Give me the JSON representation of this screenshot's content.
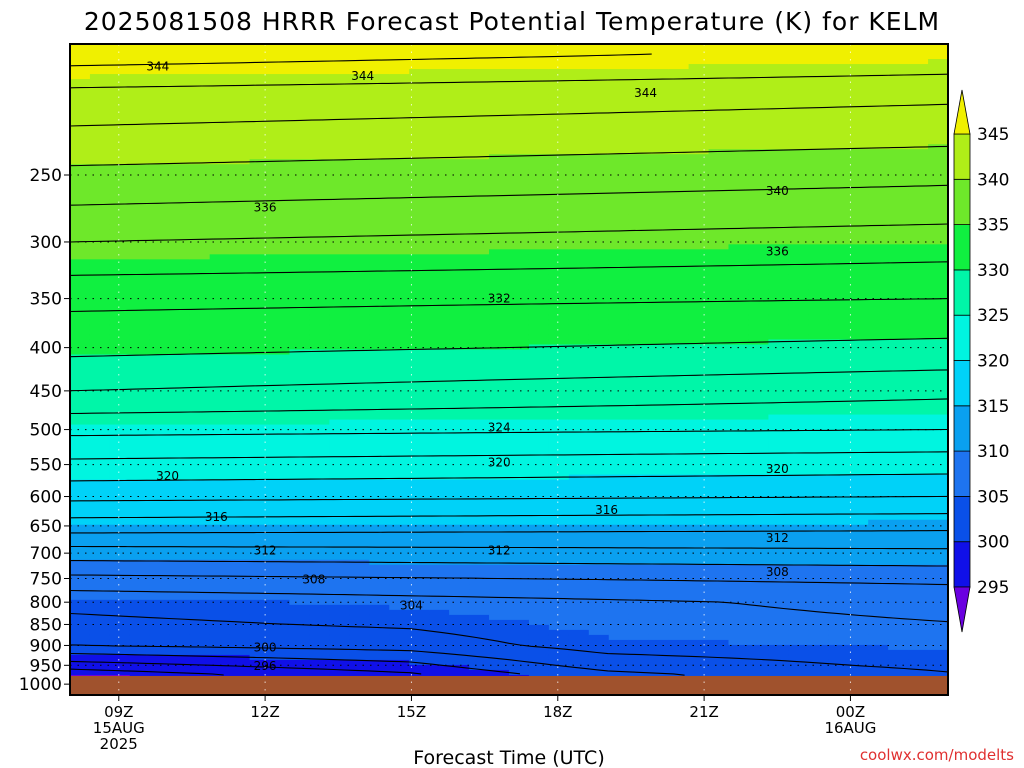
{
  "chart_data": {
    "type": "heatmap",
    "title": "2025081508 HRRR Forecast Potential Temperature (K) for KELM",
    "xlabel": "Forecast Time (UTC)",
    "ylabel": "",
    "credit": "coolwx.com/modelts",
    "x_ticks": [
      {
        "hour": 9,
        "lines": [
          "09Z",
          "15AUG",
          "2025"
        ]
      },
      {
        "hour": 12,
        "lines": [
          "12Z"
        ]
      },
      {
        "hour": 15,
        "lines": [
          "15Z"
        ]
      },
      {
        "hour": 18,
        "lines": [
          "18Z"
        ]
      },
      {
        "hour": 21,
        "lines": [
          "21Z"
        ]
      },
      {
        "hour": 24,
        "lines": [
          "00Z",
          "16AUG"
        ]
      }
    ],
    "x_range_hours": [
      8,
      26
    ],
    "y_axis": {
      "scale": "log-pressure",
      "units": "hPa",
      "range": [
        1030,
        175
      ],
      "inverted": true
    },
    "y_ticks": [
      250,
      300,
      350,
      400,
      450,
      500,
      550,
      600,
      650,
      700,
      750,
      800,
      850,
      900,
      950,
      1000
    ],
    "y_gridlines": [
      250,
      300,
      350,
      400,
      450,
      500,
      550,
      600,
      650,
      700,
      750,
      800,
      850,
      900,
      950
    ],
    "surface_pressure_hpa": 978,
    "fill_levels_k": [
      295,
      300,
      305,
      310,
      315,
      320,
      325,
      330,
      335,
      340,
      345
    ],
    "fill_colors": {
      "below_295": "#6a00e0",
      "295_300": "#1010e8",
      "300_305": "#0a50e8",
      "305_310": "#1e74f0",
      "310_315": "#0aa0f0",
      "315_320": "#00d2f8",
      "320_325": "#00f5e0",
      "325_330": "#00f6a8",
      "330_335": "#10f040",
      "335_340": "#6ee82a",
      "340_345": "#b0ee18",
      "above_345": "#f0f000"
    },
    "ground_color": "#a0522d",
    "contour_interval_k": 2,
    "contour_labels": [
      {
        "value": "344",
        "hour": 9.8,
        "p": 186
      },
      {
        "value": "344",
        "hour": 14.0,
        "p": 191
      },
      {
        "value": "344",
        "hour": 19.8,
        "p": 200
      },
      {
        "value": "340",
        "hour": 22.5,
        "p": 261
      },
      {
        "value": "336",
        "hour": 12.0,
        "p": 273
      },
      {
        "value": "336",
        "hour": 22.5,
        "p": 308
      },
      {
        "value": "332",
        "hour": 16.8,
        "p": 350
      },
      {
        "value": "324",
        "hour": 16.8,
        "p": 497
      },
      {
        "value": "320",
        "hour": 10.0,
        "p": 567
      },
      {
        "value": "320",
        "hour": 16.8,
        "p": 547
      },
      {
        "value": "320",
        "hour": 22.5,
        "p": 557
      },
      {
        "value": "316",
        "hour": 11.0,
        "p": 634
      },
      {
        "value": "316",
        "hour": 19.0,
        "p": 622
      },
      {
        "value": "312",
        "hour": 12.0,
        "p": 695
      },
      {
        "value": "312",
        "hour": 16.8,
        "p": 695
      },
      {
        "value": "312",
        "hour": 22.5,
        "p": 672
      },
      {
        "value": "308",
        "hour": 13.0,
        "p": 752
      },
      {
        "value": "308",
        "hour": 22.5,
        "p": 737
      },
      {
        "value": "304",
        "hour": 15.0,
        "p": 807
      },
      {
        "value": "300",
        "hour": 12.0,
        "p": 905
      },
      {
        "value": "296",
        "hour": 12.0,
        "p": 952
      }
    ],
    "colorbar": {
      "tick_values": [
        295,
        300,
        305,
        310,
        315,
        320,
        325,
        330,
        335,
        340,
        345
      ],
      "extend": "both"
    },
    "theta_profile_start": [
      {
        "p": 975,
        "t": 294.5
      },
      {
        "p": 950,
        "t": 297
      },
      {
        "p": 925,
        "t": 299.5
      },
      {
        "p": 900,
        "t": 302
      },
      {
        "p": 850,
        "t": 303.5
      },
      {
        "p": 800,
        "t": 304.5
      },
      {
        "p": 750,
        "t": 307.5
      },
      {
        "p": 700,
        "t": 311
      },
      {
        "p": 650,
        "t": 315
      },
      {
        "p": 600,
        "t": 318.5
      },
      {
        "p": 550,
        "t": 321.5
      },
      {
        "p": 500,
        "t": 324.5
      },
      {
        "p": 450,
        "t": 328
      },
      {
        "p": 400,
        "t": 330.5
      },
      {
        "p": 350,
        "t": 332.5
      },
      {
        "p": 300,
        "t": 336
      },
      {
        "p": 250,
        "t": 339.5
      },
      {
        "p": 200,
        "t": 343.5
      },
      {
        "p": 180,
        "t": 347
      }
    ],
    "theta_profile_end": [
      {
        "p": 975,
        "t": 302.5
      },
      {
        "p": 950,
        "t": 303.2
      },
      {
        "p": 925,
        "t": 303.8
      },
      {
        "p": 900,
        "t": 304.3
      },
      {
        "p": 850,
        "t": 305.5
      },
      {
        "p": 800,
        "t": 306.5
      },
      {
        "p": 750,
        "t": 308.5
      },
      {
        "p": 700,
        "t": 311.5
      },
      {
        "p": 650,
        "t": 314.5
      },
      {
        "p": 600,
        "t": 318
      },
      {
        "p": 550,
        "t": 320.8
      },
      {
        "p": 500,
        "t": 324
      },
      {
        "p": 450,
        "t": 326.5
      },
      {
        "p": 400,
        "t": 329.5
      },
      {
        "p": 350,
        "t": 332
      },
      {
        "p": 300,
        "t": 335
      },
      {
        "p": 250,
        "t": 338.5
      },
      {
        "p": 200,
        "t": 342.5
      },
      {
        "p": 180,
        "t": 345.5
      }
    ]
  }
}
